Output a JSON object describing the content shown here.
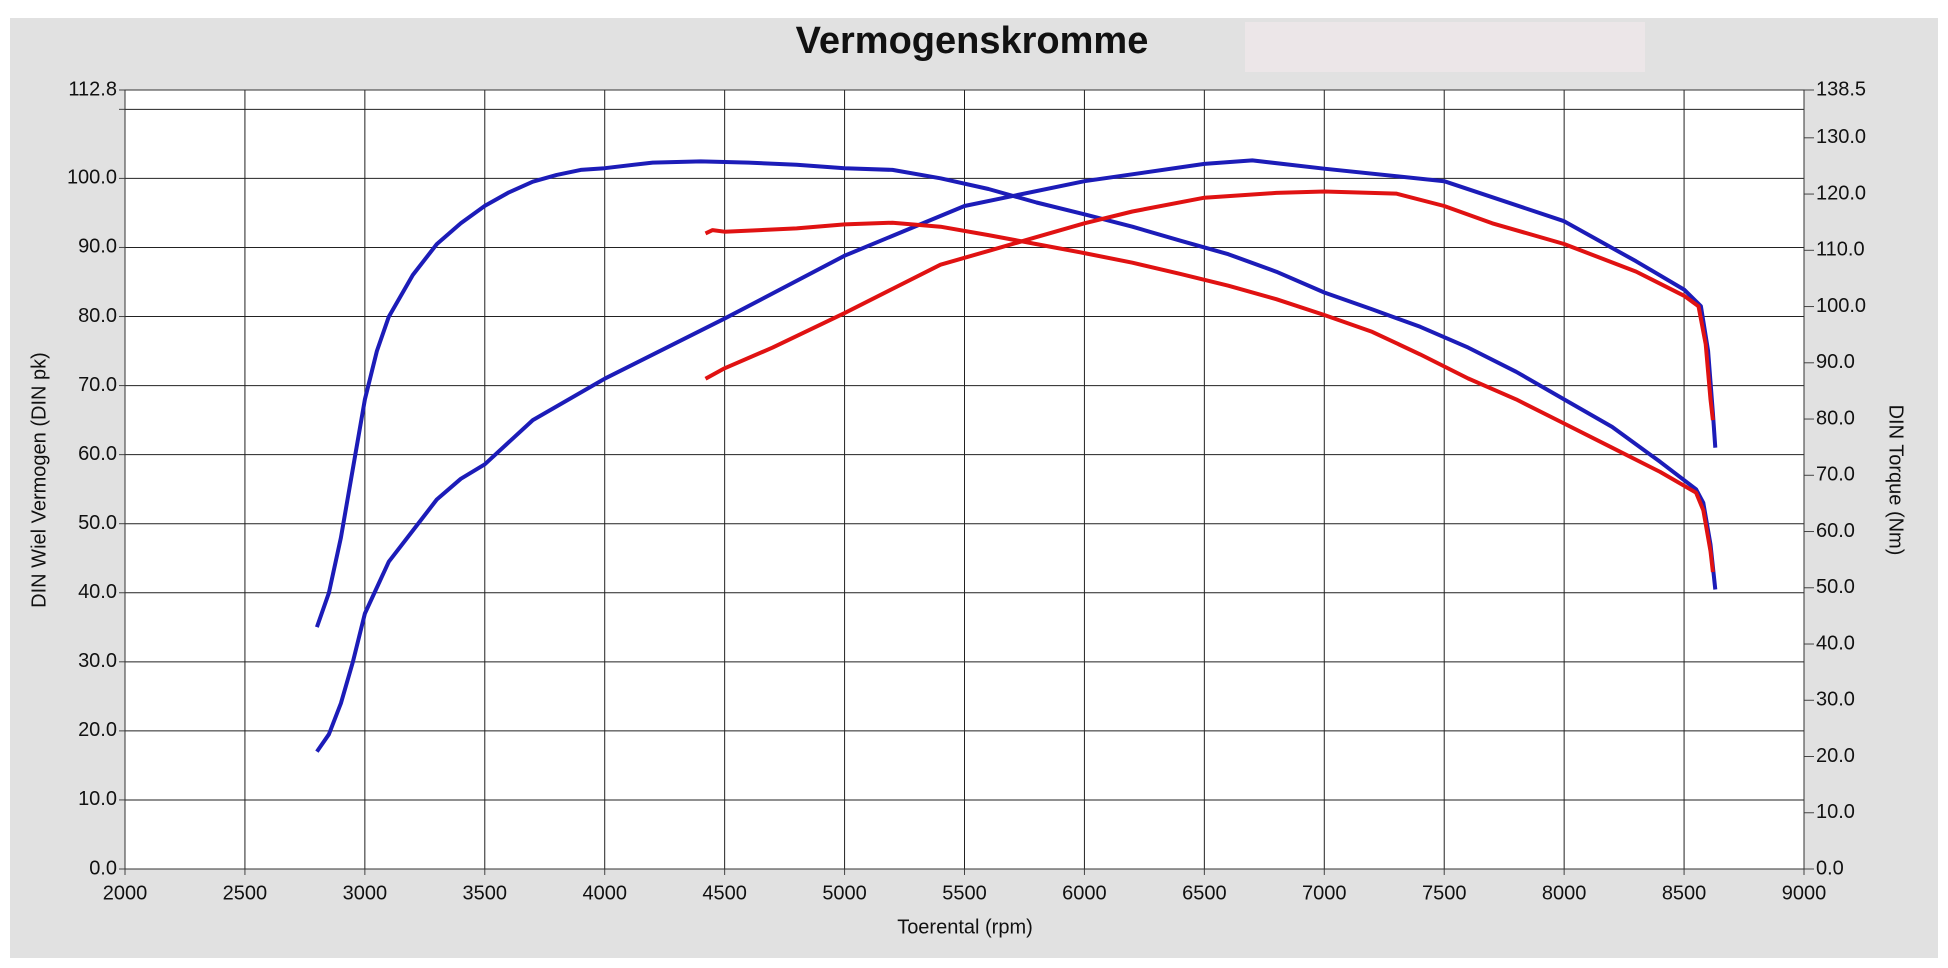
{
  "chart_data": {
    "type": "line",
    "title": "Vermogenskromme",
    "xlabel": "Toerental (rpm)",
    "ylabel": "DIN Wiel Vermogen (DIN pk)",
    "y2label": "DIN Torque (Nm)",
    "xlim": [
      2000,
      9000
    ],
    "xticks": [
      2000,
      2500,
      3000,
      3500,
      4000,
      4500,
      5000,
      5500,
      6000,
      6500,
      7000,
      7500,
      8000,
      8500,
      9000
    ],
    "ylim": [
      0,
      112.8
    ],
    "yticks": [
      {
        "value": 0,
        "label": "0.0"
      },
      {
        "value": 10,
        "label": "10.0"
      },
      {
        "value": 20,
        "label": "20.0"
      },
      {
        "value": 30,
        "label": "30.0"
      },
      {
        "value": 40,
        "label": "40.0"
      },
      {
        "value": 50,
        "label": "50.0"
      },
      {
        "value": 60,
        "label": "60.0"
      },
      {
        "value": 70,
        "label": "70.0"
      },
      {
        "value": 80,
        "label": "80.0"
      },
      {
        "value": 90,
        "label": "90.0"
      },
      {
        "value": 100,
        "label": "100.0"
      },
      {
        "value": 110,
        "label": null
      },
      112.8
    ],
    "y2lim": [
      0,
      138.5
    ],
    "y2ticks": [
      {
        "value": 0,
        "label": "0.0"
      },
      {
        "value": 10,
        "label": "10.0"
      },
      {
        "value": 20,
        "label": "20.0"
      },
      {
        "value": 30,
        "label": "30.0"
      },
      {
        "value": 40,
        "label": "40.0"
      },
      {
        "value": 50,
        "label": "50.0"
      },
      {
        "value": 60,
        "label": "60.0"
      },
      {
        "value": 70,
        "label": "70.0"
      },
      {
        "value": 80,
        "label": "80.0"
      },
      {
        "value": 90,
        "label": "90.0"
      },
      {
        "value": 100,
        "label": "100.0"
      },
      {
        "value": 110,
        "label": "110.0"
      },
      {
        "value": 120,
        "label": "120.0"
      },
      {
        "value": 130,
        "label": "130.0"
      },
      138.5
    ],
    "grid": true,
    "series": [
      {
        "color": "#1c1cb8",
        "axis": "y2",
        "x": [
          2800,
          2850,
          2900,
          2950,
          3000,
          3050,
          3100,
          3200,
          3300,
          3400,
          3500,
          3600,
          3700,
          3800,
          3900,
          4000,
          4200,
          4400,
          4600,
          4800,
          5000,
          5200,
          5400,
          5600,
          5800,
          6000,
          6200,
          6400,
          6600,
          6800,
          7000,
          7200,
          7400,
          7600,
          7800,
          8000,
          8200,
          8400,
          8550,
          8580,
          8610,
          8630
        ],
        "values": [
          43.0,
          49.1,
          58.9,
          71.2,
          83.5,
          92.1,
          98.2,
          105.6,
          111.1,
          114.8,
          117.9,
          120.3,
          122.2,
          123.4,
          124.3,
          124.6,
          125.6,
          125.8,
          125.6,
          125.2,
          124.6,
          124.3,
          122.8,
          120.9,
          118.5,
          116.4,
          114.2,
          111.7,
          109.3,
          106.2,
          102.5,
          99.5,
          96.4,
          92.7,
          88.4,
          83.5,
          78.6,
          72.4,
          67.5,
          65.1,
          57.7,
          49.7
        ]
      },
      {
        "color": "#1c1cb8",
        "x": [
          2800,
          2850,
          2900,
          2950,
          3000,
          3100,
          3200,
          3300,
          3400,
          3500,
          3700,
          4000,
          4500,
          5000,
          5500,
          6000,
          6500,
          6700,
          7000,
          7500,
          8000,
          8300,
          8500,
          8570,
          8600,
          8620,
          8630
        ],
        "values": [
          17,
          19.5,
          24,
          30,
          37,
          44.5,
          49,
          53.5,
          56.5,
          58.6,
          65,
          71,
          79.7,
          88.8,
          96,
          99.6,
          102.1,
          102.6,
          101.4,
          99.6,
          93.8,
          88,
          83.9,
          81.5,
          75,
          66,
          61
        ]
      },
      {
        "color": "#e01212",
        "axis": "y2",
        "x": [
          4420,
          4450,
          4500,
          4800,
          5000,
          5200,
          5400,
          5600,
          5800,
          6000,
          6200,
          6400,
          6600,
          6800,
          7000,
          7200,
          7400,
          7600,
          7800,
          8000,
          8200,
          8400,
          8550,
          8580,
          8610,
          8620
        ],
        "values": [
          113.0,
          113.6,
          113.3,
          113.9,
          114.6,
          114.9,
          114.2,
          112.7,
          111.1,
          109.5,
          107.8,
          105.8,
          103.7,
          101.3,
          98.5,
          95.5,
          91.5,
          87.2,
          83.5,
          79.2,
          74.9,
          70.6,
          66.9,
          63.8,
          56.5,
          52.8
        ]
      },
      {
        "color": "#e01212",
        "x": [
          4420,
          4500,
          4700,
          5000,
          5200,
          5400,
          5600,
          5800,
          6000,
          6200,
          6500,
          6800,
          7000,
          7300,
          7500,
          7700,
          8000,
          8300,
          8500,
          8560,
          8590,
          8610,
          8620
        ],
        "values": [
          71,
          72.5,
          75.5,
          80.5,
          84,
          87.5,
          89.5,
          91.5,
          93.5,
          95.2,
          97.2,
          97.9,
          98.1,
          97.8,
          96,
          93.5,
          90.5,
          86.5,
          83,
          81.5,
          76,
          68,
          65
        ]
      }
    ]
  }
}
